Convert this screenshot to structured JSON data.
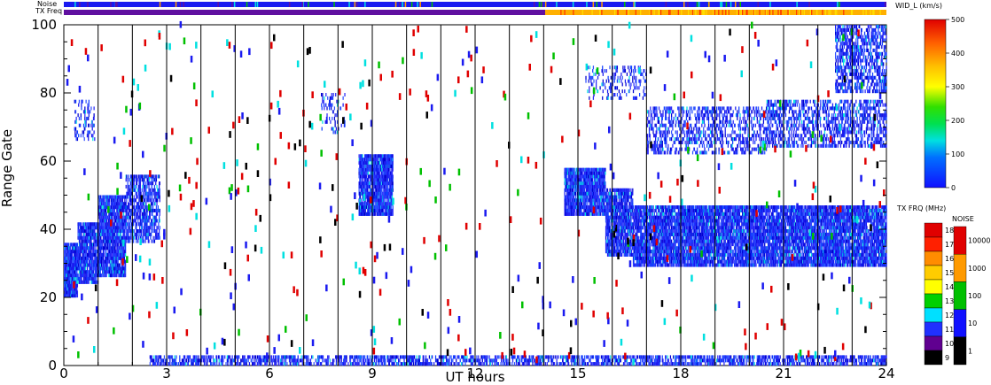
{
  "chart_data": {
    "type": "heatmap",
    "title": "",
    "xlabel": "UT hours",
    "ylabel": "Range Gate",
    "xlim": [
      0,
      24
    ],
    "ylim": [
      0,
      100
    ],
    "x_ticks": [
      0,
      3,
      6,
      9,
      12,
      15,
      18,
      21,
      24
    ],
    "y_ticks": [
      0,
      20,
      40,
      60,
      80,
      100
    ],
    "x_minor_step": 1,
    "y_minor_step": 5,
    "hour_lines": true,
    "strip_labels": {
      "noise": "Noise",
      "tx_freq": "TX Freq"
    },
    "tx_freq_change_hour": 14.2,
    "parameter_colorbar": {
      "label": "WID_L (km/s)",
      "min": 0,
      "max": 500,
      "ticks": [
        0,
        100,
        200,
        300,
        400,
        500
      ]
    },
    "tx_freq_colorbar": {
      "label": "TX FRQ (MHz)",
      "ticks": [
        "18",
        "17",
        "16",
        "15",
        "14",
        "13",
        "12",
        "11",
        "10",
        "9"
      ],
      "colors": [
        "#e00000",
        "#ff2000",
        "#ff8c00",
        "#ffcc00",
        "#ffff00",
        "#00d000",
        "#00e0ff",
        "#2030ff",
        "#600090",
        "#000000"
      ]
    },
    "noise_colorbar": {
      "label": "NOISE",
      "ticks": [
        "10000",
        "1000",
        "100",
        "10",
        "1"
      ],
      "colors": [
        "#e00000",
        "#ff9a00",
        "#00c000",
        "#1010ff",
        "#000000"
      ]
    },
    "echo_regions": [
      {
        "x": [
          0.0,
          0.4
        ],
        "y": [
          20,
          36
        ],
        "density": 0.9
      },
      {
        "x": [
          0.4,
          1.0
        ],
        "y": [
          24,
          42
        ],
        "density": 0.8
      },
      {
        "x": [
          1.0,
          1.8
        ],
        "y": [
          26,
          50
        ],
        "density": 0.75
      },
      {
        "x": [
          1.8,
          2.8
        ],
        "y": [
          36,
          56
        ],
        "density": 0.5
      },
      {
        "x": [
          0.3,
          0.9
        ],
        "y": [
          66,
          78
        ],
        "density": 0.2
      },
      {
        "x": [
          8.6,
          9.6
        ],
        "y": [
          44,
          62
        ],
        "density": 0.8
      },
      {
        "x": [
          7.5,
          8.2
        ],
        "y": [
          68,
          80
        ],
        "density": 0.15
      },
      {
        "x": [
          14.6,
          15.8
        ],
        "y": [
          44,
          58
        ],
        "density": 0.8
      },
      {
        "x": [
          15.8,
          16.6
        ],
        "y": [
          32,
          52
        ],
        "density": 0.7
      },
      {
        "x": [
          16.6,
          24.0
        ],
        "y": [
          29,
          47
        ],
        "density": 0.75
      },
      {
        "x": [
          15.2,
          17.0
        ],
        "y": [
          78,
          88
        ],
        "density": 0.15
      },
      {
        "x": [
          17.0,
          20.5
        ],
        "y": [
          62,
          76
        ],
        "density": 0.3
      },
      {
        "x": [
          20.5,
          24.0
        ],
        "y": [
          64,
          78
        ],
        "density": 0.35
      },
      {
        "x": [
          22.5,
          24.0
        ],
        "y": [
          80,
          100
        ],
        "density": 0.4
      },
      {
        "x": [
          2.5,
          24.0
        ],
        "y": [
          0,
          3
        ],
        "density": 0.45
      }
    ]
  }
}
